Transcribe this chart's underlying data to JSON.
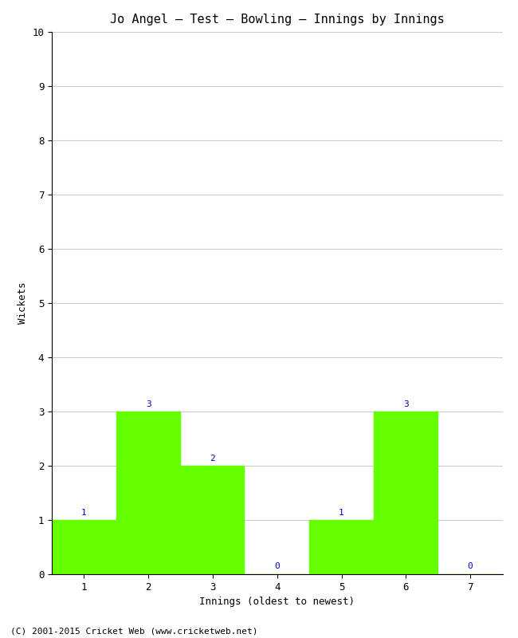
{
  "title": "Jo Angel – Test – Bowling – Innings by Innings",
  "xlabel": "Innings (oldest to newest)",
  "ylabel": "Wickets",
  "categories": [
    "1",
    "2",
    "3",
    "4",
    "5",
    "6",
    "7"
  ],
  "values": [
    1,
    3,
    2,
    0,
    1,
    3,
    0
  ],
  "bar_color": "#66ff00",
  "bar_edge_color": "#66ff00",
  "ylim": [
    0,
    10
  ],
  "yticks": [
    0,
    1,
    2,
    3,
    4,
    5,
    6,
    7,
    8,
    9,
    10
  ],
  "label_color": "#0000cc",
  "label_fontsize": 8,
  "title_fontsize": 11,
  "axis_label_fontsize": 9,
  "tick_fontsize": 9,
  "footer_text": "(C) 2001-2015 Cricket Web (www.cricketweb.net)",
  "footer_fontsize": 8,
  "background_color": "#ffffff",
  "grid_color": "#cccccc"
}
